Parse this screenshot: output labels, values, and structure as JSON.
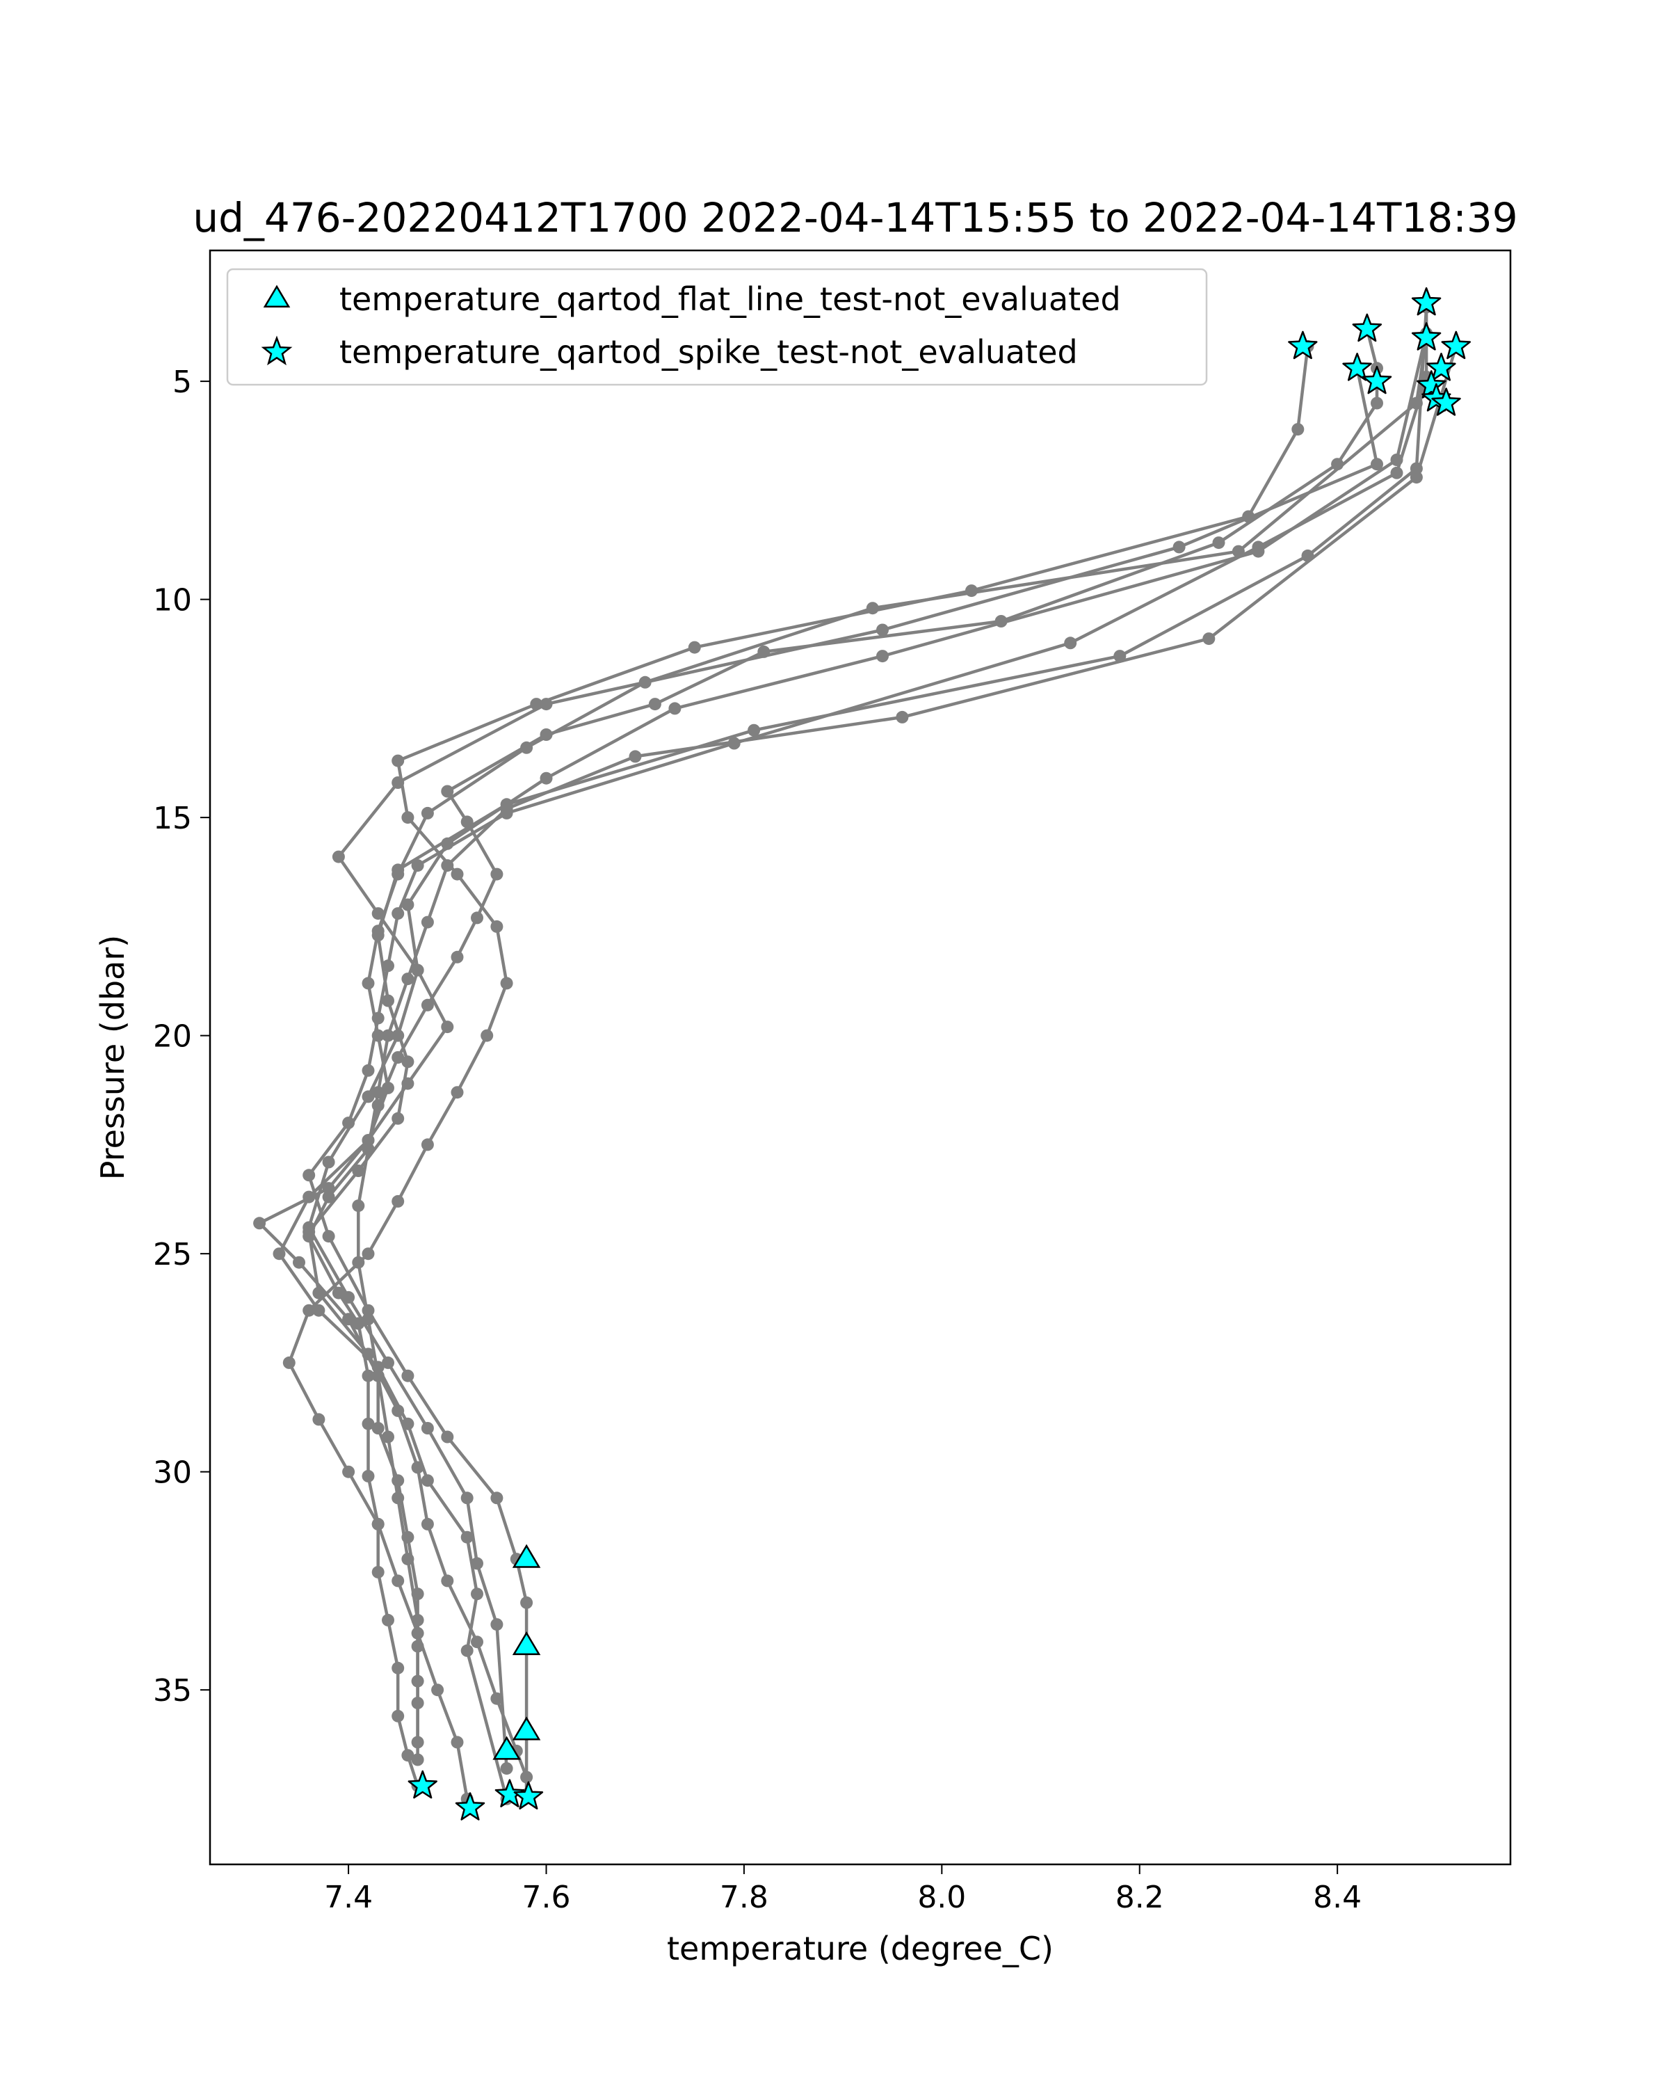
{
  "chart_data": {
    "type": "scatter",
    "title": "ud_476-20220412T1700 2022-04-14T15:55 to 2022-04-14T18:39",
    "xlabel": "temperature (degree_C)",
    "ylabel": "Pressure (dbar)",
    "xlim": [
      7.26,
      8.575
    ],
    "ylim": [
      39.0,
      2.0
    ],
    "y_inverted": true,
    "xticks": [
      "7.4",
      "7.6",
      "7.8",
      "8.0",
      "8.2",
      "8.4"
    ],
    "yticks": [
      "5",
      "10",
      "15",
      "20",
      "25",
      "30",
      "35"
    ],
    "grid": false,
    "legend_position": "upper-left",
    "profile_color": "#808080",
    "marker_face_color": "#00ffff",
    "marker_edge_color": "#000000",
    "profiles": [
      {
        "name": "",
        "x": [
          8.43,
          8.44,
          8.44,
          8.4,
          8.28,
          8.06,
          7.82,
          7.71,
          7.6,
          7.5,
          7.52,
          7.55,
          7.53,
          7.51,
          7.48,
          7.45,
          7.43,
          7.42,
          7.38,
          7.36,
          7.39,
          7.41,
          7.42,
          7.42,
          7.42,
          7.43,
          7.43,
          7.44,
          7.45,
          7.45,
          7.46,
          7.47
        ],
        "y": [
          3.8,
          4.7,
          5.5,
          6.9,
          8.7,
          10.5,
          11.2,
          12.4,
          13.1,
          14.4,
          15.1,
          16.3,
          17.3,
          18.2,
          19.3,
          20.5,
          21.6,
          22.6,
          23.7,
          24.6,
          25.9,
          26.6,
          27.8,
          28.9,
          30.1,
          31.2,
          32.3,
          33.4,
          34.5,
          35.6,
          36.5,
          37.2
        ]
      },
      {
        "name": "",
        "x": [
          8.37,
          8.36,
          8.31,
          8.03,
          7.75,
          7.59,
          7.45,
          7.46,
          7.51,
          7.55,
          7.56,
          7.54,
          7.51,
          7.48,
          7.45,
          7.42,
          7.36,
          7.34,
          7.37,
          7.4,
          7.43,
          7.45,
          7.47,
          7.49,
          7.51,
          7.52
        ],
        "y": [
          4.2,
          6.1,
          8.1,
          9.8,
          11.1,
          12.4,
          13.7,
          15.0,
          16.3,
          17.5,
          18.8,
          20.0,
          21.3,
          22.5,
          23.8,
          25.0,
          26.3,
          27.5,
          28.8,
          30.0,
          31.2,
          32.5,
          33.7,
          35.0,
          36.2,
          37.5
        ]
      },
      {
        "name": "",
        "x": [
          8.42,
          8.44,
          8.24,
          7.94,
          7.6,
          7.45,
          7.39,
          7.43,
          7.47,
          7.5,
          7.46,
          7.42,
          7.36,
          7.33,
          7.37,
          7.43,
          7.46,
          7.48,
          7.52,
          7.53,
          7.52,
          7.56
        ],
        "y": [
          4.7,
          6.9,
          8.8,
          10.7,
          12.4,
          14.2,
          15.9,
          17.2,
          18.5,
          19.8,
          21.1,
          22.4,
          23.7,
          25.0,
          26.3,
          27.6,
          28.9,
          30.2,
          31.5,
          32.8,
          34.1,
          37.5
        ]
      },
      {
        "name": "",
        "x": [
          8.49,
          8.48,
          8.3,
          7.93,
          7.7,
          7.58,
          7.48,
          7.45,
          7.43,
          7.42,
          7.43,
          7.44,
          7.42,
          7.38,
          7.31,
          7.35,
          7.4,
          7.43,
          7.43,
          7.45,
          7.46,
          7.47,
          7.47,
          7.47,
          7.47
        ],
        "y": [
          4.0,
          5.5,
          8.9,
          10.2,
          11.9,
          13.4,
          14.9,
          16.3,
          17.6,
          18.8,
          20.0,
          21.2,
          22.4,
          23.5,
          24.3,
          25.2,
          26.5,
          27.8,
          29.0,
          30.2,
          31.5,
          32.8,
          34.0,
          35.3,
          36.6
        ]
      },
      {
        "name": "",
        "x": [
          8.49,
          8.46,
          8.32,
          7.94,
          7.73,
          7.6,
          7.5,
          7.46,
          7.47,
          7.45,
          7.42,
          7.38,
          7.36,
          7.4,
          7.44,
          7.48,
          7.52,
          7.53,
          7.55,
          7.56
        ],
        "y": [
          3.9,
          6.8,
          8.9,
          11.3,
          12.5,
          14.1,
          15.6,
          17.0,
          18.5,
          20.0,
          21.4,
          22.9,
          24.4,
          26.0,
          27.5,
          29.0,
          30.6,
          32.1,
          33.5,
          36.8
        ]
      },
      {
        "name": "",
        "x": [
          8.49,
          8.49,
          8.46,
          8.32,
          8.13,
          7.79,
          7.56,
          7.47,
          7.45,
          7.44,
          7.43,
          7.42,
          7.4,
          7.36,
          7.38,
          7.42,
          7.46,
          7.5,
          7.55,
          7.57,
          7.58,
          7.58,
          7.58,
          7.58
        ],
        "y": [
          3.2,
          4.9,
          7.1,
          8.8,
          11.0,
          13.3,
          14.9,
          16.1,
          17.2,
          18.4,
          19.6,
          20.8,
          22.0,
          23.2,
          24.6,
          26.3,
          27.8,
          29.2,
          30.6,
          32.0,
          33.0,
          34.0,
          36.0,
          37.4
        ]
      },
      {
        "name": "",
        "x": [
          8.49,
          8.48,
          8.37,
          8.18,
          7.81,
          7.56,
          7.45,
          7.43,
          7.44,
          7.46,
          7.45,
          7.41,
          7.36,
          7.37,
          7.42,
          7.45,
          7.47,
          7.48,
          7.5,
          7.53,
          7.55,
          7.57,
          7.58,
          7.58
        ],
        "y": [
          3.3,
          7.0,
          9.0,
          11.3,
          13.0,
          14.7,
          16.2,
          17.7,
          19.2,
          20.6,
          21.9,
          23.1,
          24.5,
          25.9,
          27.3,
          28.6,
          29.9,
          31.2,
          32.5,
          33.9,
          35.2,
          36.4,
          37.0,
          37.4
        ]
      },
      {
        "name": "",
        "x": [
          8.52,
          8.48,
          8.27,
          7.96,
          7.69,
          7.56,
          7.5,
          7.48,
          7.46,
          7.44,
          7.43,
          7.42,
          7.41,
          7.41,
          7.42,
          7.43,
          7.44,
          7.45,
          7.46,
          7.47,
          7.47,
          7.47
        ],
        "y": [
          4.2,
          7.2,
          10.9,
          12.7,
          13.6,
          14.8,
          16.1,
          17.4,
          18.7,
          20.0,
          21.3,
          22.6,
          23.9,
          25.2,
          26.5,
          27.8,
          29.2,
          30.6,
          32.0,
          33.4,
          34.8,
          36.2
        ]
      }
    ],
    "series": [
      {
        "name": "temperature_qartod_flat_line_test-not_evaluated",
        "marker": "triangle",
        "x": [
          7.58,
          7.58,
          7.58,
          7.56
        ],
        "y": [
          32.0,
          34.0,
          35.95,
          36.4
        ]
      },
      {
        "name": "temperature_qartod_spike_test-not_evaluated",
        "marker": "star",
        "x": [
          8.365,
          8.43,
          8.49,
          8.42,
          8.44,
          8.49,
          8.52,
          8.505,
          8.495,
          8.5,
          8.51,
          7.475,
          7.523,
          7.563,
          7.582
        ],
        "y": [
          4.2,
          3.8,
          3.2,
          4.7,
          5.0,
          4.0,
          4.2,
          4.7,
          5.1,
          5.4,
          5.5,
          37.2,
          37.7,
          37.4,
          37.45
        ]
      }
    ]
  }
}
